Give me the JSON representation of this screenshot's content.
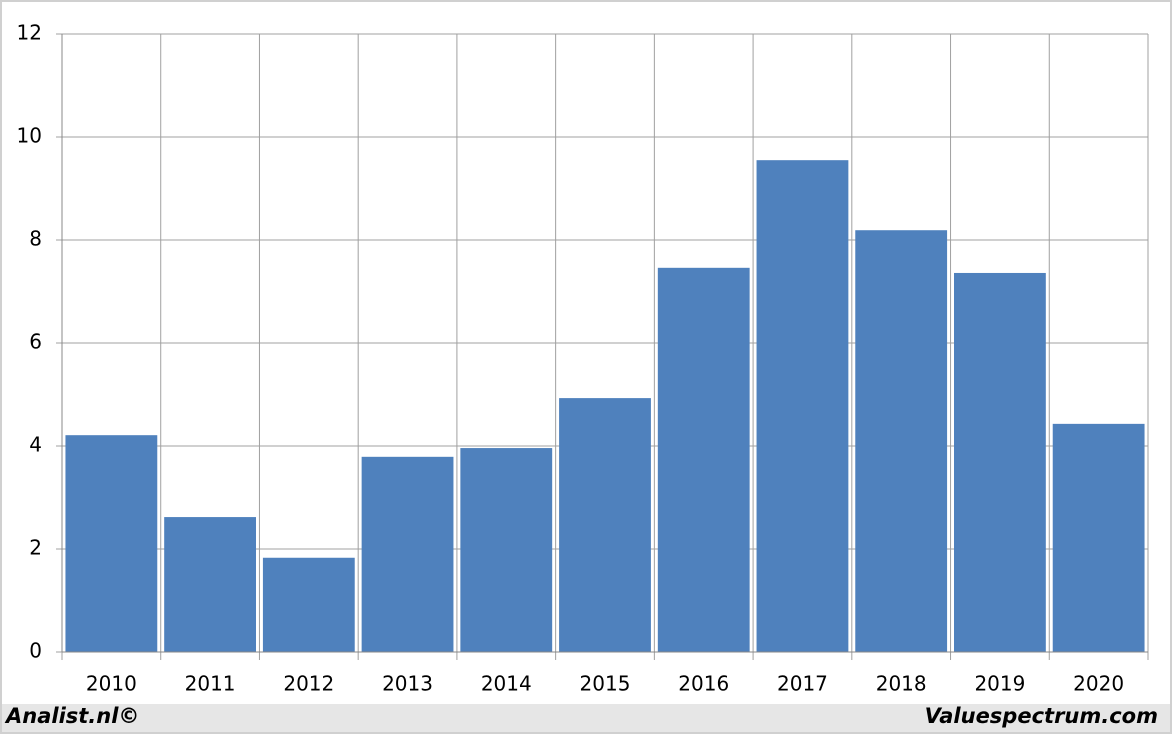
{
  "chart_data": {
    "type": "bar",
    "categories": [
      "2010",
      "2011",
      "2012",
      "2013",
      "2014",
      "2015",
      "2016",
      "2017",
      "2018",
      "2019",
      "2020"
    ],
    "values": [
      4.21,
      2.62,
      1.83,
      3.79,
      3.96,
      4.93,
      7.46,
      9.55,
      8.19,
      7.36,
      4.43
    ],
    "color": "#4f81bd",
    "ylim": [
      0,
      12
    ],
    "yticks": [
      0,
      2,
      4,
      6,
      8,
      10,
      12
    ],
    "grid": true
  },
  "footer": {
    "left": "Analist.nl©",
    "right": "Valuespectrum.com"
  }
}
